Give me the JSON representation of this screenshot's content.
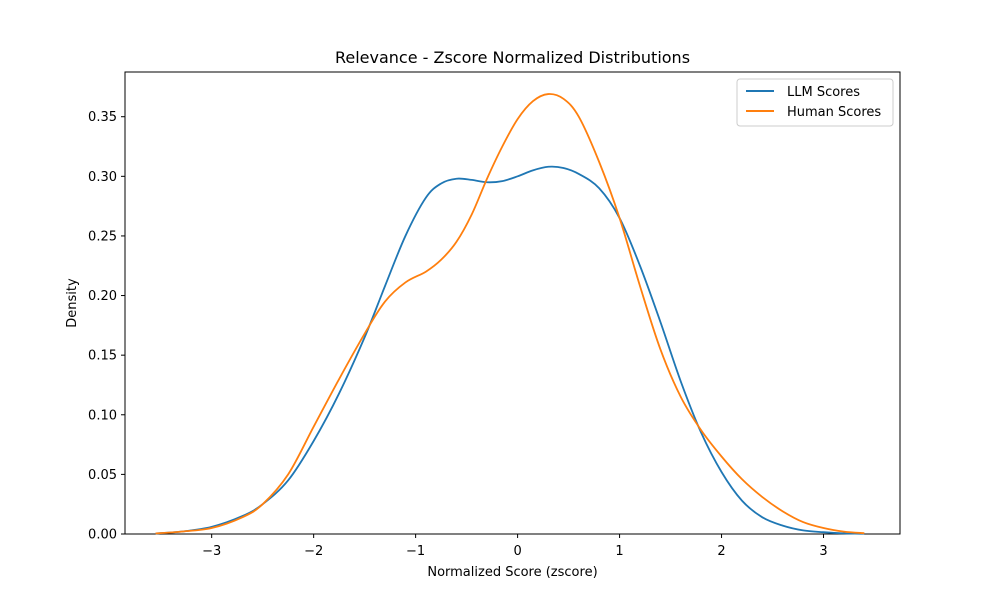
{
  "chart_data": {
    "type": "line",
    "title": "Relevance - Zscore Normalized Distributions",
    "xlabel": "Normalized Score (zscore)",
    "ylabel": "Density",
    "xlim": [
      -3.85,
      3.75
    ],
    "ylim": [
      0.0,
      0.3875
    ],
    "x_ticks": [
      -3,
      -2,
      -1,
      0,
      1,
      2,
      3
    ],
    "x_tick_labels": [
      "−3",
      "−2",
      "−1",
      "0",
      "1",
      "2",
      "3"
    ],
    "y_ticks": [
      0.0,
      0.05,
      0.1,
      0.15,
      0.2,
      0.25,
      0.3,
      0.35
    ],
    "y_tick_labels": [
      "0.00",
      "0.05",
      "0.10",
      "0.15",
      "0.20",
      "0.25",
      "0.30",
      "0.35"
    ],
    "grid": false,
    "legend_position": "top-right",
    "series": [
      {
        "name": "LLM Scores",
        "color": "#1f77b4",
        "x": [
          -3.55,
          -3.3,
          -3.0,
          -2.7,
          -2.5,
          -2.25,
          -2.0,
          -1.75,
          -1.5,
          -1.3,
          -1.1,
          -0.9,
          -0.75,
          -0.6,
          -0.45,
          -0.3,
          -0.15,
          0.0,
          0.15,
          0.3,
          0.45,
          0.6,
          0.8,
          1.0,
          1.2,
          1.4,
          1.6,
          1.8,
          2.0,
          2.2,
          2.4,
          2.6,
          2.8,
          3.0,
          3.2,
          3.4
        ],
        "y": [
          0.0005,
          0.002,
          0.006,
          0.015,
          0.025,
          0.045,
          0.078,
          0.118,
          0.165,
          0.208,
          0.25,
          0.282,
          0.294,
          0.298,
          0.297,
          0.295,
          0.296,
          0.3,
          0.305,
          0.308,
          0.307,
          0.302,
          0.29,
          0.265,
          0.225,
          0.178,
          0.128,
          0.085,
          0.052,
          0.028,
          0.014,
          0.007,
          0.003,
          0.0015,
          0.0005,
          0.0002
        ]
      },
      {
        "name": "Human Scores",
        "color": "#ff7f0e",
        "x": [
          -3.55,
          -3.3,
          -3.0,
          -2.7,
          -2.5,
          -2.25,
          -2.0,
          -1.75,
          -1.5,
          -1.3,
          -1.1,
          -0.9,
          -0.75,
          -0.6,
          -0.45,
          -0.3,
          -0.15,
          0.0,
          0.15,
          0.3,
          0.45,
          0.6,
          0.8,
          1.0,
          1.2,
          1.4,
          1.6,
          1.8,
          2.0,
          2.2,
          2.4,
          2.6,
          2.8,
          3.0,
          3.2,
          3.4
        ],
        "y": [
          0.0005,
          0.002,
          0.005,
          0.014,
          0.025,
          0.05,
          0.09,
          0.13,
          0.168,
          0.195,
          0.211,
          0.22,
          0.23,
          0.245,
          0.268,
          0.298,
          0.325,
          0.348,
          0.363,
          0.369,
          0.365,
          0.35,
          0.312,
          0.265,
          0.208,
          0.155,
          0.115,
          0.087,
          0.065,
          0.046,
          0.031,
          0.019,
          0.01,
          0.005,
          0.002,
          0.0007
        ]
      }
    ]
  }
}
